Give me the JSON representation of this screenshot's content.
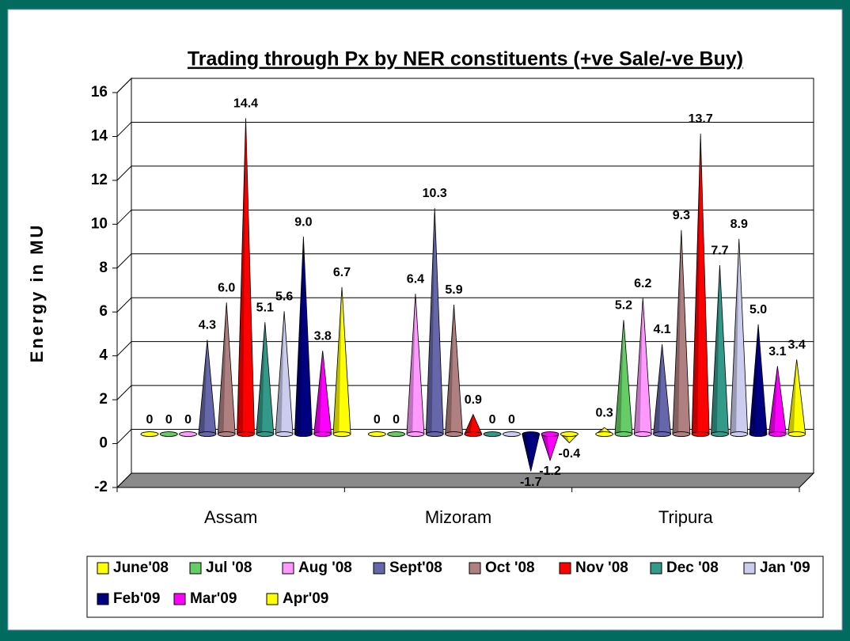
{
  "chart_data": {
    "type": "cone",
    "title": "Trading through Px by NER constituents (+ve Sale/-ve Buy)",
    "y_label": "Energy in MU",
    "categories": [
      "Assam",
      "Mizoram",
      "Tripura"
    ],
    "ylim": [
      -2,
      16
    ],
    "yticks": [
      -2,
      0,
      2,
      4,
      6,
      8,
      10,
      12,
      14,
      16
    ],
    "grid": true,
    "legend": "bottom",
    "series": [
      {
        "name": "June'08",
        "color": "#ffff00",
        "values": [
          0,
          0,
          0.3
        ],
        "value_labels": [
          "0",
          "0",
          "0.3"
        ]
      },
      {
        "name": "Jul '08",
        "color": "#66cc66",
        "values": [
          0,
          0,
          5.2
        ],
        "value_labels": [
          "0",
          "0",
          "5.2"
        ]
      },
      {
        "name": "Aug '08",
        "color": "#ff99ff",
        "values": [
          0,
          6.4,
          6.2
        ],
        "value_labels": [
          "0",
          "6.4",
          "6.2"
        ]
      },
      {
        "name": "Sept'08",
        "color": "#6666aa",
        "values": [
          4.3,
          10.3,
          4.1
        ],
        "value_labels": [
          "4.3",
          "10.3",
          "4.1"
        ]
      },
      {
        "name": "Oct '08",
        "color": "#b08080",
        "values": [
          6.0,
          5.9,
          9.3
        ],
        "value_labels": [
          "6.0",
          "5.9",
          "9.3"
        ]
      },
      {
        "name": "Nov '08",
        "color": "#ff0000",
        "values": [
          14.4,
          0.9,
          13.7
        ],
        "value_labels": [
          "14.4",
          "0.9",
          "13.7"
        ]
      },
      {
        "name": "Dec '08",
        "color": "#339988",
        "values": [
          5.1,
          0,
          7.7
        ],
        "value_labels": [
          "5.1",
          "0",
          "7.7"
        ]
      },
      {
        "name": "Jan '09",
        "color": "#ccccee",
        "values": [
          5.6,
          0,
          8.9
        ],
        "value_labels": [
          "5.6",
          "0",
          "8.9"
        ]
      },
      {
        "name": "Feb'09",
        "color": "#000080",
        "values": [
          9.0,
          -1.7,
          5.0
        ],
        "value_labels": [
          "9.0",
          "-1.7",
          "5.0"
        ]
      },
      {
        "name": "Mar'09",
        "color": "#ff00ff",
        "values": [
          3.8,
          -1.2,
          3.1
        ],
        "value_labels": [
          "3.8",
          "-1.2",
          "3.1"
        ]
      },
      {
        "name": "Apr'09",
        "color": "#ffff00",
        "values": [
          6.7,
          -0.4,
          3.4
        ],
        "value_labels": [
          "6.7",
          "-0.4",
          "3.4"
        ]
      }
    ]
  }
}
